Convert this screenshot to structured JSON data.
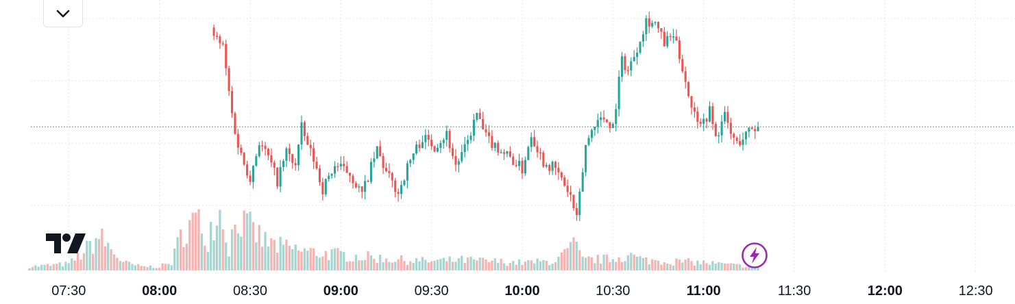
{
  "controls": {
    "collapse_icon": "chevron-down-icon",
    "logo_icon": "tradingview-logo-icon",
    "realtime_icon": "lightning-bolt-icon"
  },
  "colors": {
    "up": "#26a69a",
    "down": "#ef5350",
    "volume_up": "#a5d6d2",
    "volume_down": "#f5b4b2",
    "grid": "#e6e6e6",
    "price_line": "#26a69a",
    "bolt": "#9c27b0"
  },
  "chart_data": {
    "type": "candlestick",
    "title": "",
    "xlabel": "",
    "ylabel": "",
    "grid": true,
    "x_axis": {
      "ticks": [
        {
          "time": "07:30",
          "label": "07:30",
          "major": false
        },
        {
          "time": "08:00",
          "label": "08:00",
          "major": true
        },
        {
          "time": "08:30",
          "label": "08:30",
          "major": false
        },
        {
          "time": "09:00",
          "label": "09:00",
          "major": true
        },
        {
          "time": "09:30",
          "label": "09:30",
          "major": false
        },
        {
          "time": "10:00",
          "label": "10:00",
          "major": true
        },
        {
          "time": "10:30",
          "label": "10:30",
          "major": false
        },
        {
          "time": "11:00",
          "label": "11:00",
          "major": true
        },
        {
          "time": "11:30",
          "label": "11:30",
          "major": false
        },
        {
          "time": "12:00",
          "label": "12:00",
          "major": true
        },
        {
          "time": "12:30",
          "label": "12:30",
          "major": false
        }
      ],
      "range": [
        "07:17",
        "12:43"
      ]
    },
    "series": [
      {
        "kind": "ohlc",
        "knots": [
          [
            "08:18",
            102
          ],
          [
            "08:21",
            96
          ],
          [
            "08:24",
            62
          ],
          [
            "08:26",
            46
          ],
          [
            "08:28",
            37
          ],
          [
            "08:30",
            30
          ],
          [
            "08:33",
            48
          ],
          [
            "08:36",
            40
          ],
          [
            "08:39",
            28
          ],
          [
            "08:42",
            43
          ],
          [
            "08:45",
            36
          ],
          [
            "08:47",
            55
          ],
          [
            "08:49",
            46
          ],
          [
            "08:51",
            39
          ],
          [
            "08:54",
            24
          ],
          [
            "08:58",
            36
          ],
          [
            "09:03",
            32
          ],
          [
            "09:07",
            21
          ],
          [
            "09:12",
            44
          ],
          [
            "09:15",
            32
          ],
          [
            "09:19",
            22
          ],
          [
            "09:22",
            35
          ],
          [
            "09:24",
            42
          ],
          [
            "09:27",
            50
          ],
          [
            "09:31",
            46
          ],
          [
            "09:35",
            52
          ],
          [
            "09:38",
            36
          ],
          [
            "09:41",
            44
          ],
          [
            "09:45",
            62
          ],
          [
            "09:48",
            50
          ],
          [
            "09:52",
            45
          ],
          [
            "09:56",
            40
          ],
          [
            "10:00",
            34
          ],
          [
            "10:03",
            52
          ],
          [
            "10:07",
            38
          ],
          [
            "10:11",
            34
          ],
          [
            "10:14",
            26
          ],
          [
            "10:16",
            20
          ],
          [
            "10:18",
            8
          ],
          [
            "10:21",
            46
          ],
          [
            "10:24",
            58
          ],
          [
            "10:27",
            60
          ],
          [
            "10:30",
            56
          ],
          [
            "10:33",
            90
          ],
          [
            "10:35",
            84
          ],
          [
            "10:38",
            96
          ],
          [
            "10:41",
            110
          ],
          [
            "10:44",
            108
          ],
          [
            "10:47",
            98
          ],
          [
            "10:50",
            102
          ],
          [
            "10:53",
            86
          ],
          [
            "10:55",
            72
          ],
          [
            "10:57",
            62
          ],
          [
            "11:00",
            58
          ],
          [
            "11:02",
            64
          ],
          [
            "11:04",
            50
          ],
          [
            "11:07",
            61
          ],
          [
            "11:09",
            52
          ],
          [
            "11:11",
            47
          ],
          [
            "11:13",
            50
          ],
          [
            "11:16",
            55
          ],
          [
            "11:18",
            55
          ]
        ]
      },
      {
        "kind": "volume",
        "knots": [
          [
            "07:17",
            3
          ],
          [
            "07:24",
            4
          ],
          [
            "07:30",
            5
          ],
          [
            "07:35",
            14
          ],
          [
            "07:40",
            26
          ],
          [
            "07:44",
            16
          ],
          [
            "07:48",
            6
          ],
          [
            "07:54",
            3
          ],
          [
            "08:00",
            3
          ],
          [
            "08:04",
            6
          ],
          [
            "08:08",
            32
          ],
          [
            "08:12",
            38
          ],
          [
            "08:16",
            26
          ],
          [
            "08:19",
            48
          ],
          [
            "08:21",
            40
          ],
          [
            "08:23",
            18
          ],
          [
            "08:26",
            44
          ],
          [
            "08:28",
            34
          ],
          [
            "08:31",
            30
          ],
          [
            "08:35",
            22
          ],
          [
            "08:40",
            18
          ],
          [
            "08:50",
            14
          ],
          [
            "09:00",
            12
          ],
          [
            "09:10",
            10
          ],
          [
            "09:20",
            8
          ],
          [
            "09:30",
            7
          ],
          [
            "09:40",
            8
          ],
          [
            "09:50",
            7
          ],
          [
            "10:00",
            6
          ],
          [
            "10:10",
            7
          ],
          [
            "10:14",
            12
          ],
          [
            "10:17",
            20
          ],
          [
            "10:20",
            8
          ],
          [
            "10:30",
            9
          ],
          [
            "10:35",
            12
          ],
          [
            "10:40",
            8
          ],
          [
            "10:50",
            7
          ],
          [
            "11:00",
            6
          ],
          [
            "11:10",
            4
          ],
          [
            "11:18",
            3
          ]
        ]
      }
    ]
  }
}
